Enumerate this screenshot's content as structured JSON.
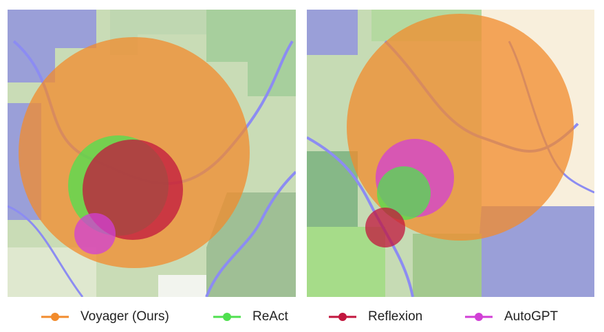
{
  "legend": [
    {
      "label": "Voyager (Ours)",
      "color": "#f28b2c"
    },
    {
      "label": "ReAct",
      "color": "#4fe04f"
    },
    {
      "label": "Reflexion",
      "color": "#c2163e"
    },
    {
      "label": "AutoGPT",
      "color": "#d13fd6"
    }
  ]
}
